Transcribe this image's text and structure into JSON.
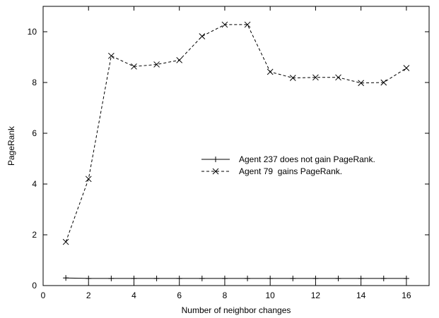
{
  "chart_data": {
    "type": "line",
    "title": "",
    "xlabel": "Number of neighbor changes",
    "ylabel": "PageRank",
    "xlim": [
      0,
      17
    ],
    "ylim": [
      0,
      11
    ],
    "xticks": [
      0,
      2,
      4,
      6,
      8,
      10,
      12,
      14,
      16
    ],
    "yticks": [
      0,
      2,
      4,
      6,
      8,
      10
    ],
    "grid": false,
    "legend_position": "right",
    "x": [
      1,
      2,
      3,
      4,
      5,
      6,
      7,
      8,
      9,
      10,
      11,
      12,
      13,
      14,
      15,
      16
    ],
    "series": [
      {
        "name": "Agent 237 does not gain PageRank.",
        "marker": "plus",
        "line_style": "solid",
        "color": "#000000",
        "values": [
          0.3,
          0.28,
          0.28,
          0.28,
          0.28,
          0.28,
          0.28,
          0.28,
          0.28,
          0.28,
          0.28,
          0.28,
          0.28,
          0.28,
          0.28,
          0.28
        ]
      },
      {
        "name": "Agent 79  gains PageRank.",
        "marker": "cross",
        "line_style": "dashed",
        "color": "#000000",
        "values": [
          1.72,
          4.2,
          9.05,
          8.63,
          8.71,
          8.88,
          9.82,
          10.28,
          10.28,
          8.42,
          8.18,
          8.2,
          8.2,
          7.98,
          8.0,
          8.57
        ]
      }
    ]
  }
}
